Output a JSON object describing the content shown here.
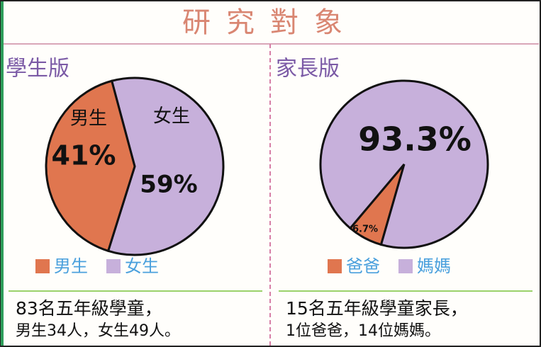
{
  "title": "研究對象",
  "chart_data": [
    {
      "type": "pie",
      "title": "學生版",
      "categories": [
        "男生",
        "女生"
      ],
      "values": [
        41,
        59
      ],
      "value_labels": [
        "41%",
        "59%"
      ],
      "colors": [
        "#e0764f",
        "#c7b0db"
      ],
      "caption": [
        "83名五年級學童，",
        "男生34人，女生49人。"
      ]
    },
    {
      "type": "pie",
      "title": "家長版",
      "categories": [
        "爸爸",
        "媽媽"
      ],
      "values": [
        6.7,
        93.3
      ],
      "value_labels": [
        "6.7%",
        "93.3%"
      ],
      "colors": [
        "#e0764f",
        "#c7b0db"
      ],
      "caption": [
        "15名五年級學童家長，",
        "1位爸爸，14位媽媽。"
      ]
    }
  ]
}
